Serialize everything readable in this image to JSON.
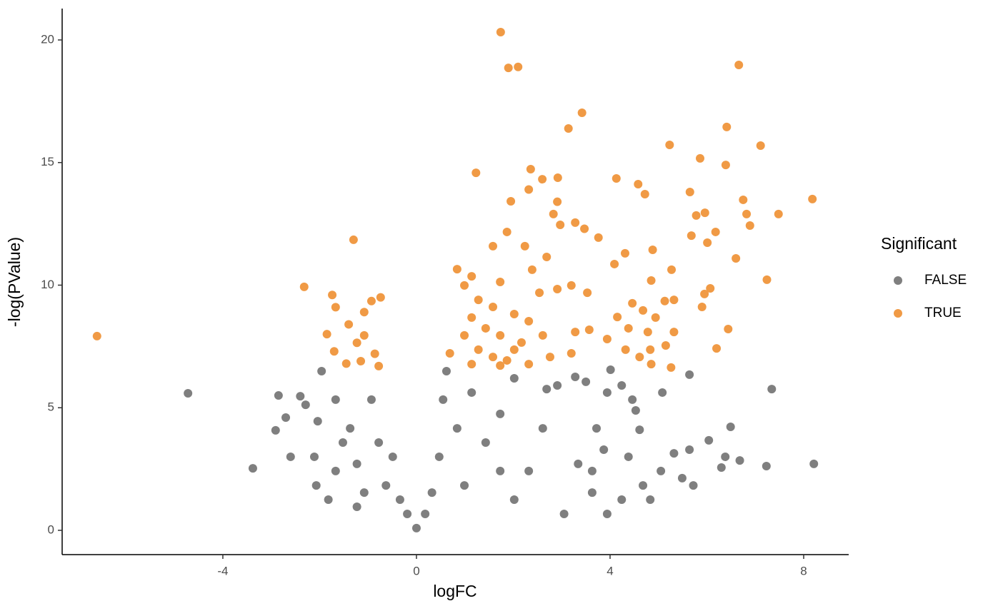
{
  "chart_data": {
    "type": "scatter",
    "x_label": "logFC",
    "y_label": "-log(PValue)",
    "xlim": [
      -7.32,
      8.93
    ],
    "ylim": [
      -0.99,
      21.28
    ],
    "xticks": [
      -4,
      0,
      4,
      8
    ],
    "yticks": [
      0,
      5,
      10,
      15,
      20
    ],
    "grid": false,
    "legend": "right",
    "legend_title": "Significant",
    "series": [
      {
        "name": "FALSE",
        "color": "#7f7f7f",
        "x": [
          -4.72,
          -3.38,
          -2.85,
          -2.91,
          -2.7,
          -2.6,
          -2.4,
          -2.29,
          -2.04,
          -1.96,
          -2.11,
          -2.07,
          -1.82,
          -1.67,
          -1.52,
          -1.67,
          -1.37,
          -1.23,
          -1.23,
          -1.08,
          -0.93,
          -0.78,
          -0.63,
          -0.49,
          -0.34,
          -0.19,
          0,
          0.18,
          0.32,
          0.47,
          0.55,
          0.62,
          0.84,
          0.99,
          1.14,
          1.43,
          1.73,
          2.02,
          1.73,
          2.02,
          2.32,
          2.61,
          2.69,
          2.91,
          3.05,
          3.28,
          3.5,
          3.72,
          3.87,
          4.01,
          3.94,
          4.24,
          4.46,
          4.53,
          4.61,
          4.38,
          4.24,
          3.94,
          3.63,
          3.34,
          3.63,
          4.68,
          5.05,
          5.08,
          5.32,
          5.64,
          5.64,
          5.72,
          6.04,
          6.49,
          6.3,
          6.68,
          7.34,
          7.23,
          8.21,
          6.38,
          4.83,
          5.49
        ],
        "y": [
          5.59,
          2.53,
          5.5,
          4.08,
          4.6,
          3.0,
          5.47,
          5.12,
          4.45,
          6.49,
          3.0,
          1.83,
          1.25,
          2.42,
          3.58,
          5.33,
          4.16,
          2.71,
          0.96,
          1.54,
          5.33,
          3.58,
          1.83,
          3.0,
          1.25,
          0.67,
          0.09,
          0.67,
          1.54,
          3.0,
          5.33,
          6.49,
          4.16,
          1.83,
          5.62,
          3.58,
          4.75,
          6.2,
          2.42,
          1.25,
          2.42,
          4.16,
          5.76,
          5.91,
          0.67,
          6.26,
          6.06,
          4.16,
          3.29,
          6.55,
          5.62,
          5.91,
          5.33,
          4.89,
          4.1,
          3.0,
          1.25,
          0.67,
          1.54,
          2.71,
          2.42,
          1.83,
          2.42,
          5.62,
          3.14,
          6.35,
          3.29,
          1.83,
          3.67,
          4.22,
          2.56,
          2.85,
          5.76,
          2.62,
          2.71,
          3.0,
          1.25,
          2.13
        ]
      },
      {
        "name": "TRUE",
        "color": "#f09a45",
        "x": [
          -6.6,
          -2.32,
          -1.3,
          -1.74,
          -1.67,
          -0.74,
          -0.93,
          -1.08,
          -1.4,
          -1.85,
          -1.7,
          -1.23,
          -0.86,
          -1.15,
          -1.45,
          -0.78,
          -1.08,
          1.74,
          1.9,
          2.1,
          3.42,
          3.14,
          1.23,
          2.36,
          2.92,
          2.6,
          1.95,
          2.32,
          2.91,
          2.83,
          2.97,
          3.28,
          3.47,
          3.76,
          1.87,
          1.58,
          2.24,
          2.69,
          0.84,
          1.14,
          1.73,
          2.39,
          2.54,
          2.91,
          3.2,
          3.53,
          0.99,
          1.28,
          1.58,
          2.02,
          2.32,
          1.14,
          1.43,
          1.73,
          2.17,
          0.99,
          1.28,
          1.58,
          1.87,
          2.32,
          0.69,
          1.14,
          1.73,
          2.02,
          2.61,
          2.76,
          3.2,
          3.28,
          3.57,
          3.94,
          4.15,
          4.38,
          4.46,
          4.09,
          4.31,
          4.13,
          4.58,
          4.72,
          5.23,
          5.86,
          6.41,
          6.39,
          6.66,
          7.11,
          8.18,
          7.48,
          6.75,
          6.82,
          6.89,
          5.65,
          5.78,
          5.96,
          5.68,
          6.18,
          6.01,
          6.6,
          4.88,
          5.27,
          4.85,
          7.24,
          6.07,
          5.95,
          5.9,
          5.32,
          5.13,
          4.94,
          4.78,
          5.32,
          5.15,
          4.83,
          4.61,
          4.85,
          5.26,
          6.44,
          6.2,
          4.68,
          4.32
        ],
        "y": [
          7.92,
          9.93,
          11.85,
          9.6,
          9.1,
          9.5,
          9.35,
          8.9,
          8.4,
          8.0,
          7.3,
          7.65,
          7.2,
          6.9,
          6.8,
          6.7,
          7.95,
          20.32,
          18.86,
          18.9,
          17.03,
          16.39,
          14.58,
          14.73,
          14.38,
          14.32,
          13.42,
          13.9,
          13.4,
          12.9,
          12.46,
          12.55,
          12.3,
          11.94,
          12.17,
          11.59,
          11.59,
          11.15,
          10.65,
          10.36,
          10.13,
          10.63,
          9.69,
          9.84,
          9.99,
          9.69,
          9.99,
          9.4,
          9.11,
          8.82,
          8.53,
          8.68,
          8.24,
          7.95,
          7.66,
          7.95,
          7.37,
          7.07,
          6.93,
          6.78,
          7.22,
          6.78,
          6.72,
          7.37,
          7.95,
          7.07,
          7.22,
          8.09,
          8.18,
          7.8,
          8.7,
          8.24,
          9.26,
          10.86,
          11.3,
          14.35,
          14.12,
          13.71,
          15.72,
          15.17,
          16.45,
          14.9,
          18.98,
          15.69,
          13.51,
          12.9,
          13.48,
          12.9,
          12.43,
          13.8,
          12.84,
          12.95,
          12.02,
          12.17,
          11.73,
          11.09,
          11.44,
          10.63,
          10.19,
          10.22,
          9.87,
          9.64,
          9.11,
          9.4,
          9.35,
          8.68,
          8.09,
          8.09,
          7.54,
          7.37,
          7.07,
          6.78,
          6.64,
          8.21,
          7.42,
          8.97,
          7.37
        ]
      }
    ]
  }
}
